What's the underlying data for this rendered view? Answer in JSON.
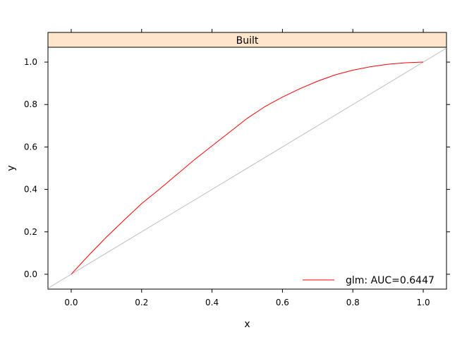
{
  "chart_data": {
    "type": "line",
    "panel_title": "Built",
    "xlabel": "x",
    "ylabel": "y",
    "xlim": [
      -0.066,
      1.066
    ],
    "ylim": [
      -0.07,
      1.07
    ],
    "x_ticks": [
      0.0,
      0.2,
      0.4,
      0.6,
      0.8,
      1.0
    ],
    "x_tick_labels": [
      "0.0",
      "0.2",
      "0.4",
      "0.6",
      "0.8",
      "1.0"
    ],
    "y_ticks": [
      0.0,
      0.2,
      0.4,
      0.6,
      0.8,
      1.0
    ],
    "y_tick_labels": [
      "0.0",
      "0.2",
      "0.4",
      "0.6",
      "0.8",
      "1.0"
    ],
    "grid": false,
    "legend_position": "bottom-right",
    "series": [
      {
        "name": "glm: AUC=0.6447",
        "color": "#ff0000",
        "x": [
          0.0,
          0.05,
          0.1,
          0.15,
          0.2,
          0.25,
          0.3,
          0.35,
          0.4,
          0.45,
          0.5,
          0.55,
          0.6,
          0.65,
          0.7,
          0.75,
          0.8,
          0.85,
          0.9,
          0.95,
          1.0
        ],
        "y": [
          0.0,
          0.09,
          0.175,
          0.255,
          0.333,
          0.4,
          0.47,
          0.54,
          0.605,
          0.67,
          0.735,
          0.79,
          0.835,
          0.875,
          0.91,
          0.94,
          0.962,
          0.978,
          0.99,
          0.997,
          1.0
        ]
      }
    ],
    "reference_line": {
      "x": [
        -0.066,
        1.066
      ],
      "y": [
        -0.066,
        1.066
      ],
      "color": "#bebebe"
    }
  }
}
